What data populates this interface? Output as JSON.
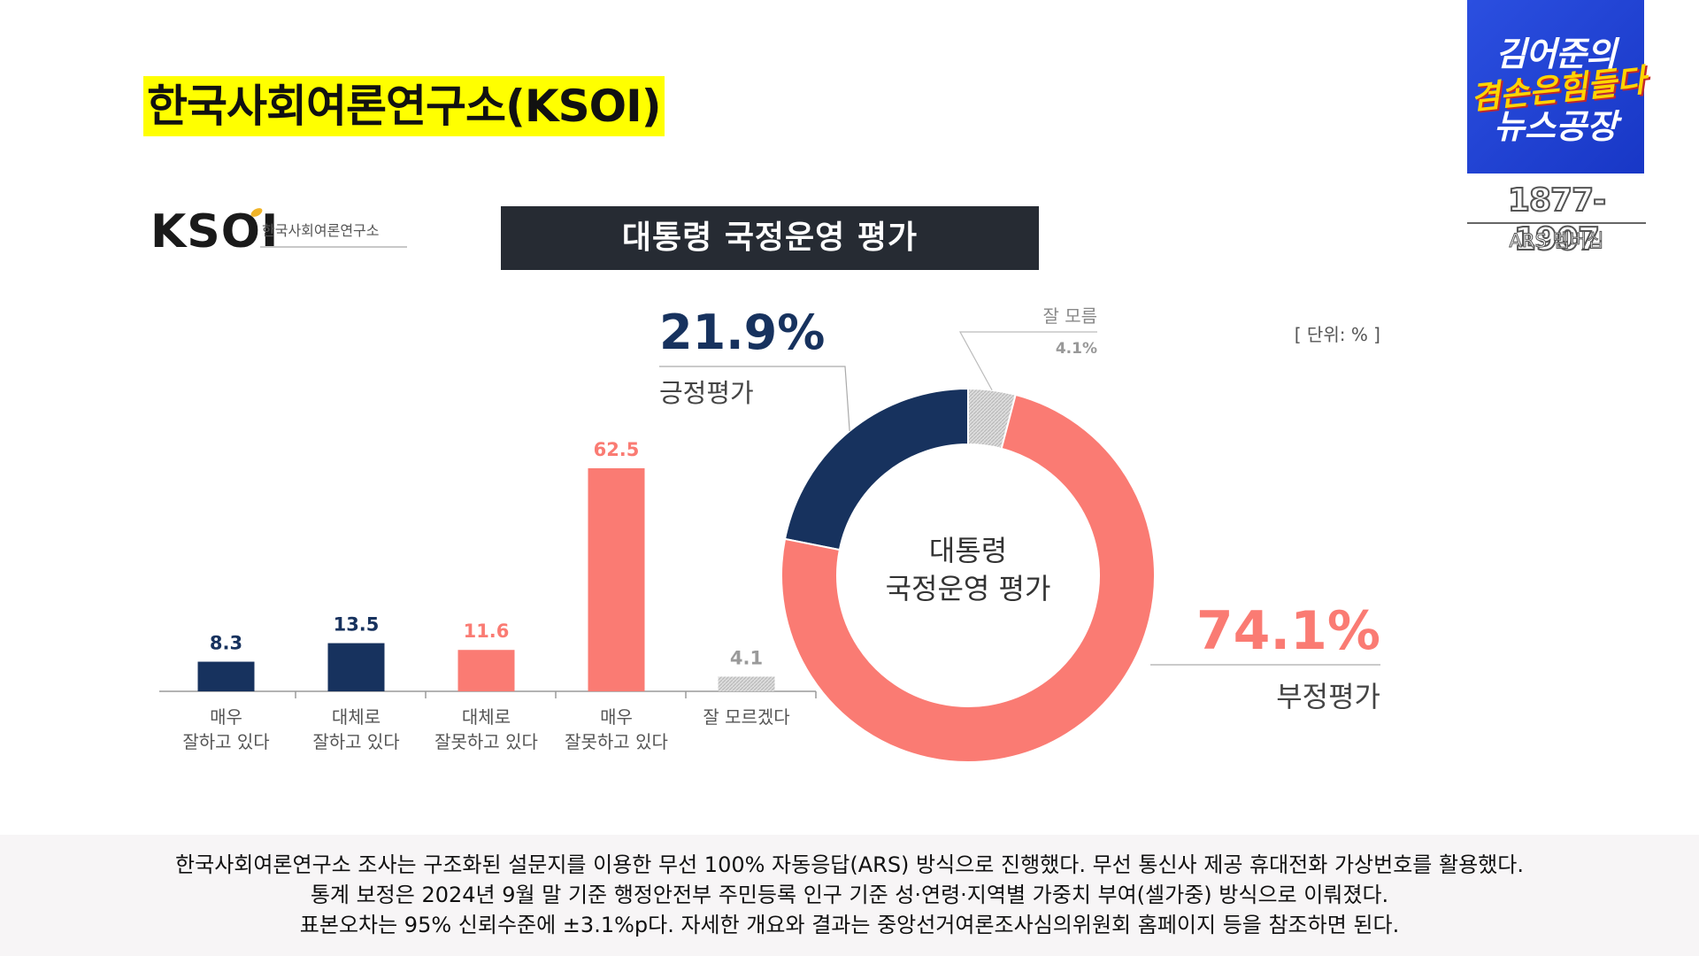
{
  "headline": "한국사회여론연구소(KSOI)",
  "logo": {
    "mark": "KSOI",
    "subtitle": "한국사회여론연구소"
  },
  "brand": {
    "line1": "김어준의",
    "line2": "겸손은힘들다",
    "line3": "뉴스공장",
    "phone": "1877-1907",
    "membership": "ARS 멤버십",
    "colors": {
      "background": "#2244d8",
      "accent": "#ffd400"
    }
  },
  "footer": {
    "lines": [
      "한국사회여론연구소 조사는 구조화된 설문지를 이용한 무선 100% 자동응답(ARS) 방식으로 진행했다. 무선 통신사 제공 휴대전화 가상번호를 활용했다.",
      "통계 보정은 2024년 9월 말 기준 행정안전부 주민등록 인구 기준 성·연령·지역별 가중치 부여(셀가중) 방식으로 이뤄졌다.",
      "표본오차는 95% 신뢰수준에 ±3.1%p다. 자세한 개요와 결과는 중앙선거여론조사심의위원회 홈페이지 등을 참조하면 된다."
    ]
  },
  "chart_data": [
    {
      "type": "bar",
      "title": "대통령 국정운영 평가",
      "unit_label": "[ 단위: % ]",
      "categories": [
        [
          "매우",
          "잘하고 있다"
        ],
        [
          "대체로",
          "잘하고 있다"
        ],
        [
          "대체로",
          "잘못하고 있다"
        ],
        [
          "매우",
          "잘못하고 있다"
        ],
        [
          "잘 모르겠다"
        ]
      ],
      "values": [
        8.3,
        13.5,
        11.6,
        62.5,
        4.1
      ],
      "value_labels": [
        "8.3",
        "13.5",
        "11.6",
        "62.5",
        "4.1"
      ],
      "colors": [
        "#17325e",
        "#17325e",
        "#fa7b73",
        "#fa7b73",
        "#c9c9c9"
      ],
      "ylim": [
        0,
        62.5
      ]
    },
    {
      "type": "pie",
      "center_label": [
        "대통령",
        "국정운영 평가"
      ],
      "slices": [
        {
          "label": "긍정평가",
          "value": 21.9,
          "value_label": "21.9%",
          "color": "#17325e"
        },
        {
          "label": "잘 모름",
          "value": 4.1,
          "value_label": "4.1%",
          "color": "#cfcfcf"
        },
        {
          "label": "부정평가",
          "value": 74.1,
          "value_label": "74.1%",
          "color": "#fa7b73"
        }
      ]
    }
  ]
}
